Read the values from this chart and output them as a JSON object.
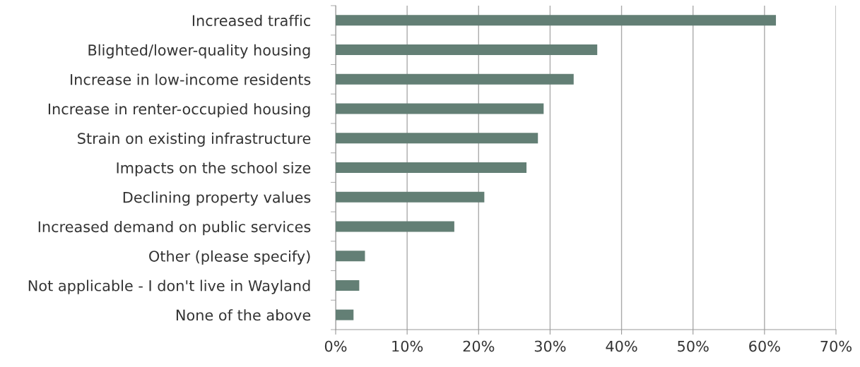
{
  "chart_data": {
    "type": "bar",
    "orientation": "horizontal",
    "categories": [
      "Increased traffic",
      "Blighted/lower-quality housing",
      "Increase in low-income residents",
      "Increase in renter-occupied housing",
      "Strain on existing infrastructure",
      "Impacts on the school size",
      "Declining property values",
      "Increased demand on public services",
      "Other (please specify)",
      "Not applicable - I don't live in Wayland",
      "None of the above"
    ],
    "values": [
      61.6,
      36.6,
      33.3,
      29.1,
      28.3,
      26.7,
      20.8,
      16.6,
      4.1,
      3.3,
      2.5
    ],
    "color": "#637f75",
    "xlim": [
      0,
      70
    ],
    "xticks": [
      {
        "value": 0,
        "label": "0%"
      },
      {
        "value": 10,
        "label": "10%"
      },
      {
        "value": 20,
        "label": "20%"
      },
      {
        "value": 30,
        "label": "30%"
      },
      {
        "value": 40,
        "label": "40%"
      },
      {
        "value": 50,
        "label": "50%"
      },
      {
        "value": 60,
        "label": "60%"
      },
      {
        "value": 70,
        "label": "70%"
      }
    ],
    "grid": "x"
  }
}
